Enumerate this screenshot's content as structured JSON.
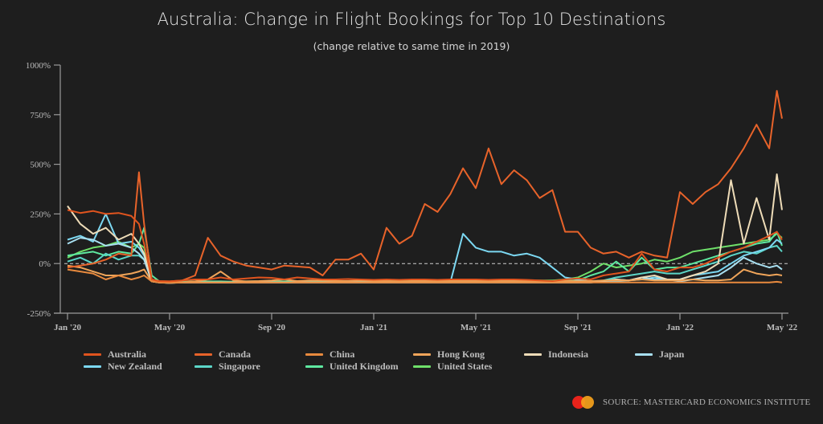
{
  "title": "Australia: Change in Flight Bookings for Top 10 Destinations",
  "subtitle": "(change relative to same time in 2019)",
  "source": "SOURCE: MASTERCARD ECONOMICS INSTITUTE",
  "logo": {
    "name": "mastercard-logo",
    "colors": [
      "#e8231b",
      "#f6a21b"
    ]
  },
  "chart_data": {
    "type": "line",
    "title": "Australia: Change in Flight Bookings for Top 10 Destinations",
    "subtitle": "(change relative to same time in 2019)",
    "xlabel": "",
    "ylabel": "",
    "ylim": [
      -250,
      1000
    ],
    "yticks": [
      -250,
      0,
      250,
      500,
      750,
      1000
    ],
    "ytick_labels": [
      "-250%",
      "0%",
      "250%",
      "500%",
      "750%",
      "1000%"
    ],
    "xtick_labels": [
      "Jan '20",
      "May '20",
      "Sep '20",
      "Jan '21",
      "May '21",
      "Sep '21",
      "Jan '22",
      "May '22"
    ],
    "x_unit": "months since Jan 2020",
    "xlim": [
      0,
      28
    ],
    "reference_line": {
      "y": 0,
      "style": "dashed"
    },
    "grid": false,
    "legend_position": "bottom",
    "x": [
      0,
      0.5,
      1,
      1.5,
      2,
      2.5,
      2.8,
      3,
      3.3,
      3.6,
      4,
      4.5,
      5,
      5.5,
      6,
      6.5,
      7,
      7.5,
      8,
      8.5,
      9,
      9.5,
      10,
      10.5,
      11,
      11.5,
      12,
      12.5,
      13,
      13.5,
      14,
      14.5,
      15,
      15.5,
      16,
      16.5,
      17,
      17.5,
      18,
      18.5,
      19,
      19.5,
      20,
      20.5,
      21,
      21.5,
      22,
      22.5,
      23,
      23.5,
      24,
      24.5,
      25,
      25.5,
      26,
      26.5,
      27,
      27.5,
      27.8,
      28
    ],
    "series": [
      {
        "name": "Australia",
        "color": "#e0541e",
        "values": [
          270,
          255,
          265,
          250,
          255,
          240,
          200,
          100,
          -80,
          -90,
          -90,
          -85,
          -80,
          -80,
          -70,
          -80,
          -75,
          -70,
          -72,
          -80,
          -70,
          -75,
          -80,
          -80,
          -78,
          -80,
          -82,
          -80,
          -82,
          -80,
          -80,
          -82,
          -80,
          -80,
          -80,
          -82,
          -80,
          -80,
          -82,
          -85,
          -88,
          -80,
          -75,
          -80,
          -60,
          -50,
          -40,
          50,
          -30,
          -40,
          -20,
          -20,
          0,
          30,
          60,
          80,
          110,
          140,
          160,
          120
        ]
      },
      {
        "name": "Canada",
        "color": "#e8632a",
        "values": [
          -20,
          -10,
          0,
          20,
          50,
          40,
          460,
          200,
          -80,
          -88,
          -90,
          -85,
          -60,
          130,
          40,
          10,
          -10,
          -20,
          -30,
          -10,
          -15,
          -20,
          -60,
          20,
          20,
          50,
          -30,
          180,
          100,
          140,
          300,
          260,
          350,
          480,
          380,
          580,
          400,
          470,
          420,
          330,
          370,
          160,
          160,
          80,
          50,
          60,
          30,
          60,
          40,
          30,
          360,
          300,
          360,
          400,
          480,
          580,
          700,
          580,
          870,
          730
        ]
      },
      {
        "name": "China",
        "color": "#e88a3e",
        "values": [
          -30,
          -40,
          -50,
          -80,
          -60,
          -80,
          -70,
          -60,
          -90,
          -95,
          -97,
          -95,
          -95,
          -95,
          -95,
          -95,
          -95,
          -95,
          -95,
          -95,
          -95,
          -95,
          -95,
          -95,
          -95,
          -95,
          -95,
          -95,
          -95,
          -95,
          -95,
          -95,
          -95,
          -95,
          -95,
          -95,
          -95,
          -95,
          -95,
          -95,
          -95,
          -95,
          -95,
          -95,
          -95,
          -95,
          -95,
          -95,
          -95,
          -95,
          -95,
          -95,
          -95,
          -95,
          -95,
          -95,
          -95,
          -95,
          -92,
          -95
        ]
      },
      {
        "name": "Hong Kong",
        "color": "#f0a55a",
        "values": [
          -10,
          -20,
          -40,
          -60,
          -60,
          -50,
          -40,
          -30,
          -90,
          -95,
          -95,
          -95,
          -90,
          -80,
          -40,
          -85,
          -90,
          -88,
          -85,
          -80,
          -88,
          -85,
          -85,
          -88,
          -88,
          -85,
          -88,
          -88,
          -90,
          -88,
          -88,
          -88,
          -88,
          -88,
          -88,
          -88,
          -88,
          -88,
          -88,
          -88,
          -88,
          -88,
          -88,
          -88,
          -85,
          -85,
          -85,
          -80,
          -85,
          -85,
          -85,
          -80,
          -85,
          -85,
          -80,
          -30,
          -50,
          -60,
          -55,
          -60
        ]
      },
      {
        "name": "Indonesia",
        "color": "#eedcb8",
        "values": [
          290,
          200,
          150,
          180,
          120,
          150,
          100,
          50,
          -90,
          -95,
          -97,
          -95,
          -95,
          -95,
          -95,
          -95,
          -95,
          -95,
          -95,
          -95,
          -95,
          -95,
          -95,
          -95,
          -95,
          -95,
          -95,
          -95,
          -95,
          -95,
          -95,
          -95,
          -95,
          -95,
          -95,
          -95,
          -95,
          -95,
          -95,
          -95,
          -95,
          -95,
          -95,
          -95,
          -90,
          -80,
          -85,
          -70,
          -60,
          -80,
          -80,
          -60,
          -40,
          0,
          420,
          100,
          330,
          120,
          450,
          270
        ]
      },
      {
        "name": "Japan",
        "color": "#a8dff0",
        "values": [
          100,
          130,
          120,
          90,
          100,
          80,
          50,
          20,
          -90,
          -96,
          -97,
          -96,
          -96,
          -96,
          -96,
          -96,
          -96,
          -96,
          -96,
          -96,
          -96,
          -96,
          -96,
          -96,
          -96,
          -96,
          -96,
          -96,
          -96,
          -96,
          -96,
          -96,
          -96,
          -96,
          -96,
          -96,
          -96,
          -96,
          -96,
          -96,
          -96,
          -96,
          -96,
          -96,
          -90,
          -80,
          -85,
          -70,
          -80,
          -80,
          -90,
          -80,
          -70,
          -60,
          -20,
          30,
          0,
          -20,
          -10,
          -30
        ]
      },
      {
        "name": "New Zealand",
        "color": "#7cd8f2",
        "values": [
          120,
          140,
          110,
          250,
          100,
          110,
          80,
          40,
          -80,
          -95,
          -97,
          -95,
          -95,
          -95,
          -95,
          -95,
          -95,
          -95,
          -95,
          -95,
          -95,
          -95,
          -95,
          -95,
          -95,
          -95,
          -95,
          -95,
          -95,
          -95,
          -95,
          -95,
          -95,
          150,
          80,
          60,
          60,
          40,
          50,
          30,
          -20,
          -70,
          -80,
          -90,
          -90,
          -90,
          -85,
          -80,
          -70,
          -80,
          -80,
          -60,
          -50,
          -40,
          0,
          40,
          60,
          80,
          120,
          100
        ]
      },
      {
        "name": "Singapore",
        "color": "#5cd6c8",
        "values": [
          10,
          30,
          0,
          50,
          20,
          40,
          40,
          20,
          -85,
          -95,
          -97,
          -95,
          -95,
          -95,
          -95,
          -95,
          -95,
          -95,
          -95,
          -95,
          -95,
          -95,
          -95,
          -95,
          -95,
          -95,
          -95,
          -95,
          -95,
          -95,
          -95,
          -95,
          -95,
          -95,
          -95,
          -95,
          -95,
          -95,
          -95,
          -95,
          -95,
          -95,
          -95,
          -90,
          -85,
          -70,
          -60,
          -50,
          -40,
          -50,
          -50,
          -30,
          -10,
          10,
          40,
          60,
          50,
          80,
          90,
          60
        ]
      },
      {
        "name": "United Kingdom",
        "color": "#5ee8a0",
        "values": [
          40,
          50,
          60,
          40,
          60,
          50,
          100,
          180,
          -60,
          -90,
          -95,
          -92,
          -90,
          -90,
          -90,
          -92,
          -90,
          -90,
          -92,
          -90,
          -90,
          -92,
          -90,
          -90,
          -90,
          -90,
          -90,
          -90,
          -90,
          -90,
          -90,
          -90,
          -90,
          -90,
          -90,
          -90,
          -90,
          -88,
          -88,
          -88,
          -88,
          -85,
          -85,
          -60,
          -40,
          10,
          -40,
          30,
          -30,
          -20,
          -20,
          0,
          20,
          40,
          60,
          80,
          100,
          110,
          160,
          90
        ]
      },
      {
        "name": "United States",
        "color": "#6fe06a",
        "values": [
          30,
          60,
          80,
          90,
          110,
          80,
          100,
          80,
          -85,
          -92,
          -95,
          -93,
          -92,
          -92,
          -92,
          -92,
          -92,
          -92,
          -92,
          -92,
          -92,
          -90,
          -90,
          -90,
          -90,
          -90,
          -88,
          -88,
          -88,
          -88,
          -88,
          -88,
          -88,
          -88,
          -88,
          -88,
          -88,
          -85,
          -85,
          -85,
          -85,
          -80,
          -70,
          -40,
          0,
          -20,
          -10,
          0,
          20,
          10,
          30,
          60,
          70,
          80,
          90,
          100,
          110,
          120,
          150,
          130
        ]
      }
    ]
  }
}
